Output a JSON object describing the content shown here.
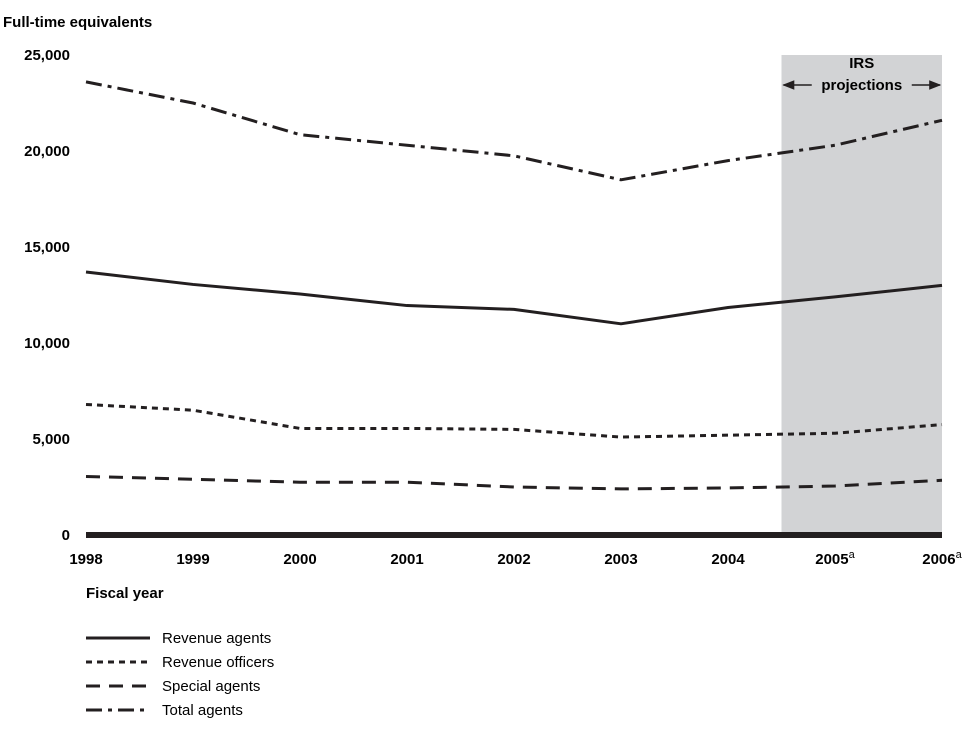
{
  "chart_data": {
    "type": "line",
    "ylabel": "Full-time equivalents",
    "xlabel": "Fiscal year",
    "x": [
      "1998",
      "1999",
      "2000",
      "2001",
      "2002",
      "2003",
      "2004",
      "2005",
      "2006"
    ],
    "x_superscripts": [
      "",
      "",
      "",
      "",
      "",
      "",
      "",
      "a",
      "a"
    ],
    "y_ticks": [
      "0",
      "5,000",
      "10,000",
      "15,000",
      "20,000",
      "25,000"
    ],
    "ylim": [
      0,
      25000
    ],
    "grid": false,
    "legend_placement": "bottom-left",
    "projection": {
      "label_line1": "IRS",
      "label_line2": "projections",
      "from_x": 2004.5,
      "to_x": 2006,
      "shade_color": "#d2d3d5"
    },
    "series": [
      {
        "name": "Revenue agents",
        "dash": "solid",
        "color": "#231f20",
        "values": [
          13700,
          13050,
          12550,
          11950,
          11750,
          11000,
          11850,
          12400,
          13000
        ]
      },
      {
        "name": "Revenue officers",
        "dash": "dotted",
        "color": "#231f20",
        "values": [
          6800,
          6500,
          5550,
          5550,
          5500,
          5100,
          5200,
          5300,
          5750
        ]
      },
      {
        "name": "Special agents",
        "dash": "dashed",
        "color": "#231f20",
        "values": [
          3050,
          2900,
          2750,
          2750,
          2500,
          2400,
          2450,
          2550,
          2850
        ]
      },
      {
        "name": "Total agents",
        "dash": "dashdot",
        "color": "#231f20",
        "values": [
          23600,
          22500,
          20850,
          20300,
          19750,
          18500,
          19500,
          20300,
          21600
        ]
      }
    ]
  }
}
